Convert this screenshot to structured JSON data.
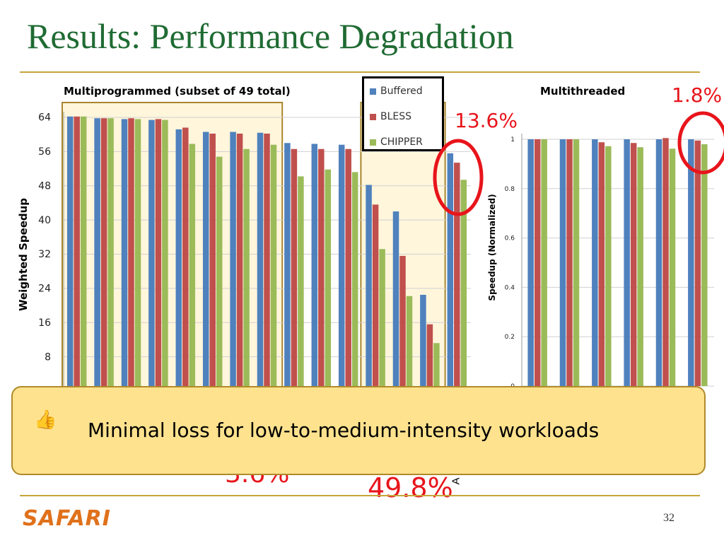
{
  "slide": {
    "title": "Results: Performance Degradation",
    "footer_logo": "SAFARI",
    "page_number": "32"
  },
  "legend": {
    "items": [
      {
        "label": "Buffered",
        "color": "#4f81bd"
      },
      {
        "label": "BLESS",
        "color": "#c0504d"
      },
      {
        "label": "CHIPPER",
        "color": "#9bbb59"
      }
    ]
  },
  "annotations": {
    "mp_avg_pct": "13.6%",
    "mt_pct": "1.8%",
    "low_pct": "3.6%",
    "high_pct": "49.8%",
    "cropped_label": "A",
    "circle_color": "#e8141b"
  },
  "callout": {
    "icon": "thumbs-up-icon",
    "text": "Minimal loss for low-to-medium-intensity workloads"
  },
  "colors": {
    "title": "#1f6b33",
    "rule": "#c6a53a",
    "highlight_fill": "#fff6dc",
    "highlight_border": "#a8862e",
    "callout_fill": "#ffe28e"
  },
  "chart_data": [
    {
      "type": "bar",
      "title": "Multiprogrammed (subset of 49 total)",
      "ylabel": "Weighted Speedup",
      "xlabel": "",
      "ylim": [
        0,
        64
      ],
      "yticks": [
        8,
        16,
        24,
        32,
        40,
        48,
        56,
        64
      ],
      "grid": true,
      "legend": "top-right",
      "categories": [
        "",
        "",
        "",
        "",
        "",
        "",
        "",
        "",
        "",
        "",
        "",
        "",
        "",
        "",
        ""
      ],
      "series": [
        {
          "name": "Buffered",
          "values": [
            64.2,
            63.8,
            63.6,
            63.4,
            61.2,
            60.6,
            60.6,
            60.4,
            58.0,
            57.8,
            57.6,
            48.2,
            42.0,
            22.5,
            55.6
          ]
        },
        {
          "name": "BLESS",
          "values": [
            64.2,
            63.8,
            63.8,
            63.6,
            61.6,
            60.2,
            60.2,
            60.2,
            56.6,
            56.6,
            56.6,
            43.6,
            31.6,
            15.6,
            53.4
          ]
        },
        {
          "name": "CHIPPER",
          "values": [
            64.2,
            63.8,
            63.6,
            63.4,
            57.8,
            54.8,
            56.6,
            57.6,
            50.2,
            51.8,
            51.2,
            33.2,
            22.2,
            11.2,
            49.4
          ]
        }
      ],
      "highlight_groups": [
        [
          0,
          7
        ],
        [
          11,
          13
        ]
      ]
    },
    {
      "type": "bar",
      "title": "Multithreaded",
      "ylabel": "Speedup (Normalized)",
      "xlabel": "",
      "ylim": [
        0,
        1
      ],
      "yticks": [
        0,
        0.2,
        0.4,
        0.6,
        0.8,
        1
      ],
      "grid": true,
      "categories": [
        "",
        "",
        "",
        "",
        "",
        ""
      ],
      "series": [
        {
          "name": "Buffered",
          "values": [
            1.0,
            1.0,
            1.0,
            1.0,
            1.0,
            1.0
          ]
        },
        {
          "name": "BLESS",
          "values": [
            1.0,
            1.0,
            0.988,
            0.985,
            1.005,
            0.995
          ]
        },
        {
          "name": "CHIPPER",
          "values": [
            1.0,
            1.0,
            0.972,
            0.968,
            0.962,
            0.98
          ]
        }
      ]
    }
  ]
}
